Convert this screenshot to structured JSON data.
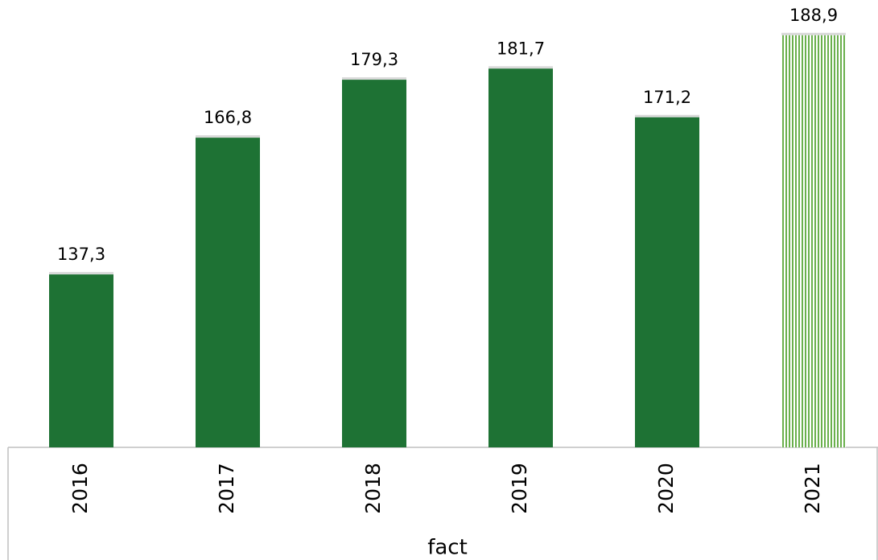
{
  "chart_data": {
    "type": "bar",
    "categories": [
      "2016",
      "2017",
      "2018",
      "2019",
      "2020",
      "2021"
    ],
    "group_label": "fact",
    "values": [
      137.3,
      166.8,
      179.3,
      181.7,
      171.2,
      188.9
    ],
    "value_labels": [
      "137,3",
      "166,8",
      "179,3",
      "181,7",
      "171,2",
      "188,9"
    ],
    "color": "#1e7234",
    "hatch_color": "#6ab04c",
    "hatched": [
      false,
      false,
      false,
      false,
      false,
      true
    ],
    "ylim": [
      100,
      196.5
    ]
  }
}
